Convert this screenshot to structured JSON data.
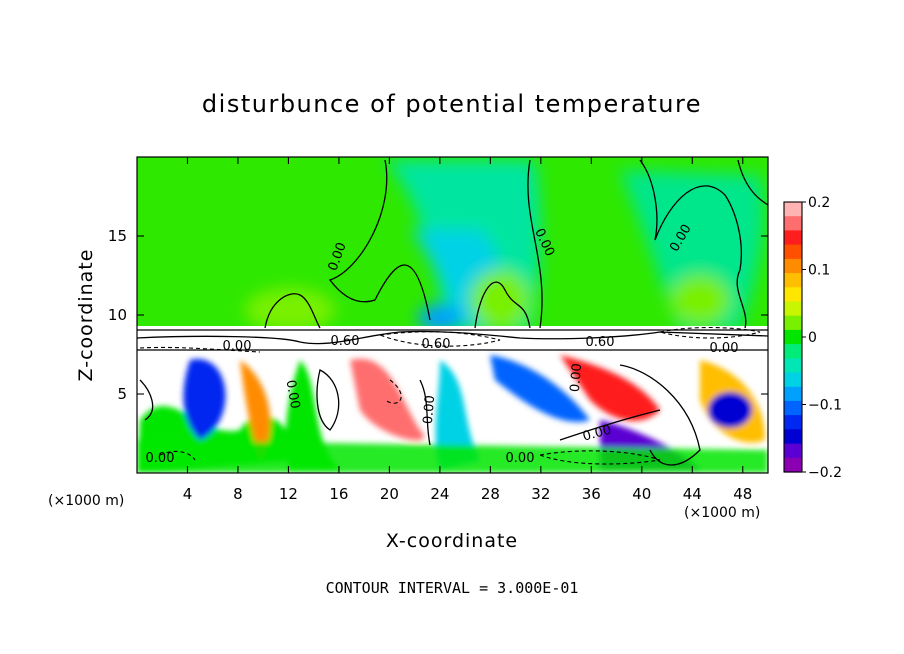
{
  "chart_data": {
    "type": "heatmap",
    "title": "disturbunce of potential temperature",
    "xlabel": "X-coordinate",
    "ylabel": "Z-coordinate",
    "x_unit": "(×1000 m)",
    "y_unit": "(×1000 m)",
    "xlim": [
      0,
      50
    ],
    "ylim": [
      0,
      20
    ],
    "x_ticks": [
      4,
      8,
      12,
      16,
      20,
      24,
      28,
      32,
      36,
      40,
      44,
      48
    ],
    "y_ticks": [
      5,
      10,
      15
    ],
    "colorbar": {
      "range": [
        -0.2,
        0.2
      ],
      "tick_labels": [
        "0.2",
        "0.1",
        "0",
        "−0.1",
        "−0.2"
      ],
      "tick_values": [
        0.2,
        0.1,
        0,
        -0.1,
        -0.2
      ],
      "colors": [
        "#ffb3b3",
        "#ff6e6e",
        "#ff1e1e",
        "#ff5000",
        "#ff8c00",
        "#ffbe00",
        "#ffe600",
        "#c8f500",
        "#78f000",
        "#00e600",
        "#00eb78",
        "#00e6b4",
        "#00d2e6",
        "#00a0ff",
        "#0064ff",
        "#0028f0",
        "#0000d2",
        "#5a00d2",
        "#8c00b4"
      ]
    },
    "contour_labels": [
      "0.00",
      "0.00",
      "0.00",
      "0.00",
      "0.00",
      "0.60",
      "0.60",
      "0.60",
      "0.00",
      "0.00",
      "0.00",
      "0.00",
      "0.00",
      "0.00"
    ],
    "footer": "CONTOUR INTERVAL = 3.000E-01"
  }
}
